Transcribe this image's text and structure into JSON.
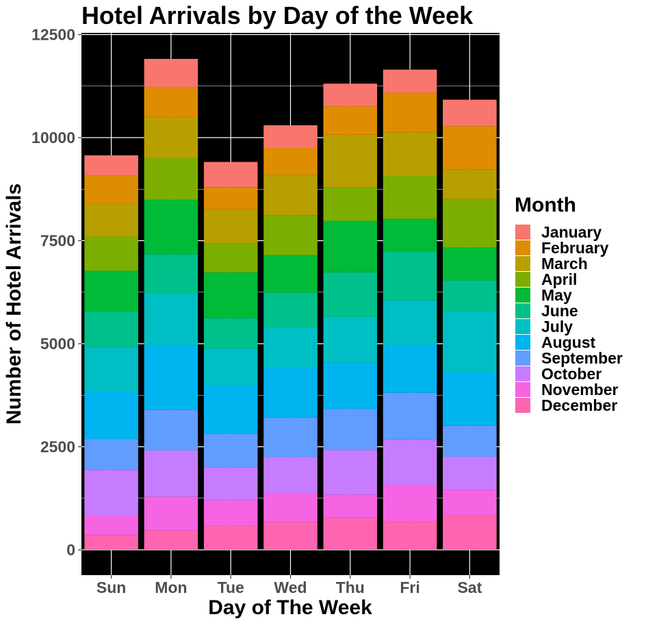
{
  "chart_data": {
    "type": "bar",
    "stacked": true,
    "title": "Hotel Arrivals by Day of the Week",
    "xlabel": "Day of The Week",
    "ylabel": "Number of Hotel Arrivals",
    "ylim": [
      0,
      12500
    ],
    "yticks": [
      0,
      2500,
      5000,
      7500,
      10000,
      12500
    ],
    "ytick_labels": [
      "0",
      "2500",
      "5000",
      "7500",
      "10000",
      "12500"
    ],
    "grid": true,
    "panel_background": "#000000",
    "grid_color": "#ffffff",
    "categories": [
      "Sun",
      "Mon",
      "Tue",
      "Wed",
      "Thu",
      "Fri",
      "Sat"
    ],
    "legend": {
      "title": "Month",
      "position": "right"
    },
    "series": [
      {
        "name": "January",
        "color": "#F8766D",
        "values": [
          490,
          680,
          610,
          550,
          550,
          560,
          640
        ]
      },
      {
        "name": "February",
        "color": "#DE8C00",
        "values": [
          690,
          730,
          540,
          650,
          690,
          960,
          1050
        ]
      },
      {
        "name": "March",
        "color": "#B79F00",
        "values": [
          790,
          1000,
          820,
          990,
          1280,
          1060,
          720
        ]
      },
      {
        "name": "April",
        "color": "#7CAE00",
        "values": [
          830,
          1010,
          710,
          960,
          810,
          1040,
          1180
        ]
      },
      {
        "name": "May",
        "color": "#00BA38",
        "values": [
          990,
          1320,
          1110,
          910,
          1250,
          790,
          790
        ]
      },
      {
        "name": "June",
        "color": "#00C08B",
        "values": [
          850,
          950,
          730,
          850,
          1080,
          1190,
          750
        ]
      },
      {
        "name": "July",
        "color": "#00BFC4",
        "values": [
          1100,
          1260,
          920,
          980,
          1110,
          1100,
          1480
        ]
      },
      {
        "name": "August",
        "color": "#00B4F0",
        "values": [
          1140,
          1560,
          1150,
          1200,
          1120,
          1140,
          1300
        ]
      },
      {
        "name": "September",
        "color": "#619CFF",
        "values": [
          750,
          990,
          820,
          960,
          1000,
          1140,
          750
        ]
      },
      {
        "name": "October",
        "color": "#C77CFF",
        "values": [
          1110,
          1120,
          790,
          880,
          1080,
          1100,
          800
        ]
      },
      {
        "name": "November",
        "color": "#F564E3",
        "values": [
          470,
          820,
          630,
          700,
          570,
          890,
          620
        ]
      },
      {
        "name": "December",
        "color": "#FF64B0",
        "values": [
          360,
          470,
          580,
          670,
          770,
          680,
          840
        ]
      }
    ]
  }
}
